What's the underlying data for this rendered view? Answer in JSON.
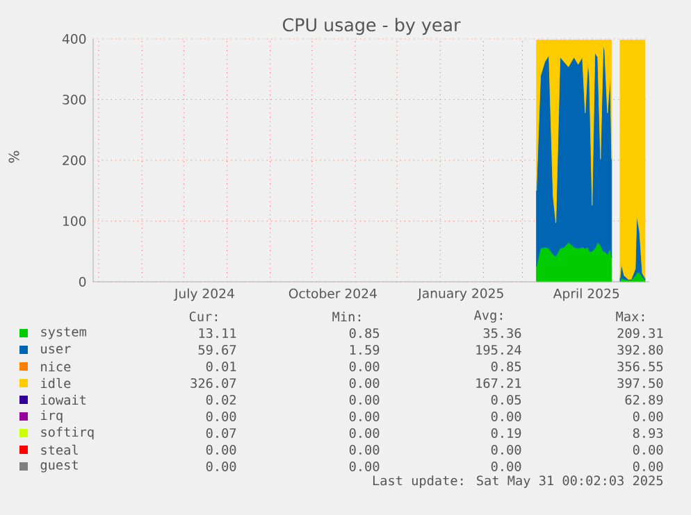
{
  "chart_data": {
    "type": "area",
    "title": "CPU usage - by year",
    "ylabel": "%",
    "stacked": true,
    "grid": true,
    "legend": "bottom",
    "xlim": [
      "2024-04-27",
      "2025-05-31"
    ],
    "xticks": [
      {
        "value": "2024-05-01",
        "label": null
      },
      {
        "value": "2024-06-01",
        "label": null
      },
      {
        "value": "2024-07-01",
        "label": null
      },
      {
        "value": "2024-07-16",
        "label": "July 2024"
      },
      {
        "value": "2024-08-01",
        "label": null
      },
      {
        "value": "2024-09-01",
        "label": null
      },
      {
        "value": "2024-10-01",
        "label": null
      },
      {
        "value": "2024-10-16",
        "label": "October 2024"
      },
      {
        "value": "2024-11-01",
        "label": null
      },
      {
        "value": "2024-12-01",
        "label": null
      },
      {
        "value": "2025-01-01",
        "label": null
      },
      {
        "value": "2025-01-16",
        "label": "January 2025"
      },
      {
        "value": "2025-02-01",
        "label": null
      },
      {
        "value": "2025-03-01",
        "label": null
      },
      {
        "value": "2025-04-01",
        "label": null
      },
      {
        "value": "2025-04-16",
        "label": "April 2025"
      },
      {
        "value": "2025-05-01",
        "label": null
      }
    ],
    "ylim": [
      0,
      400
    ],
    "yticks": [
      0,
      100,
      200,
      300,
      400
    ],
    "x": [
      "2025-03-11",
      "2025-03-14",
      "2025-03-17",
      "2025-03-20",
      "2025-03-23",
      "2025-03-25",
      "2025-03-28",
      "2025-03-31",
      "2025-04-03",
      "2025-04-07",
      "2025-04-10",
      "2025-04-13",
      "2025-04-15",
      "2025-04-17",
      "2025-04-18",
      "2025-04-20",
      "2025-04-22",
      "2025-04-24",
      "2025-04-26",
      "2025-04-28",
      "2025-04-29",
      "2025-05-01",
      "2025-05-03",
      "2025-05-04",
      "2025-05-06",
      "2025-05-10",
      "2025-05-11",
      "2025-05-13",
      "2025-05-16",
      "2025-05-18",
      "2025-05-21",
      "2025-05-22",
      "2025-05-24",
      "2025-05-26",
      "2025-05-28"
    ],
    "series": [
      {
        "name": "system",
        "color": "#00cc00",
        "values": [
          25,
          55,
          57,
          55,
          45,
          42,
          55,
          57,
          65,
          57,
          55,
          57,
          55,
          57,
          50,
          50,
          55,
          65,
          60,
          50,
          50,
          45,
          55,
          40,
          null,
          1,
          6,
          4,
          3,
          3,
          10,
          15,
          15,
          8,
          3
        ]
      },
      {
        "name": "user",
        "color": "#0066b3",
        "values": [
          125,
          284,
          305,
          318,
          96,
          55,
          315,
          305,
          289,
          313,
          303,
          313,
          223,
          305,
          289,
          76,
          322,
          305,
          142,
          339,
          331,
          233,
          284,
          162,
          null,
          5,
          23,
          6,
          1,
          1,
          11,
          94,
          68,
          6,
          3
        ]
      },
      {
        "name": "nice",
        "color": "#ff8000",
        "values": [
          null,
          null,
          null,
          null,
          null,
          null,
          null,
          null,
          null,
          null,
          null,
          null,
          null,
          null,
          null,
          null,
          null,
          null,
          null,
          null,
          null,
          null,
          null,
          null,
          null,
          null,
          null,
          null,
          null,
          null,
          null,
          null,
          null,
          null,
          null
        ]
      },
      {
        "name": "idle",
        "color": "#ffcc00",
        "values": [
          248,
          59,
          36,
          25,
          257,
          301,
          28,
          36,
          44,
          28,
          40,
          28,
          120,
          36,
          59,
          272,
          21,
          28,
          196,
          9,
          17,
          120,
          59,
          196,
          null,
          392,
          369,
          388,
          394,
          394,
          377,
          289,
          315,
          384,
          392
        ]
      },
      {
        "name": "iowait",
        "color": "#330099",
        "values": [
          null,
          null,
          null,
          null,
          null,
          null,
          null,
          null,
          null,
          null,
          null,
          null,
          null,
          null,
          null,
          null,
          null,
          null,
          null,
          null,
          null,
          null,
          null,
          null,
          null,
          null,
          null,
          null,
          null,
          null,
          null,
          null,
          null,
          null,
          null
        ]
      },
      {
        "name": "irq",
        "color": "#990099",
        "values": [
          null,
          null,
          null,
          null,
          null,
          null,
          null,
          null,
          null,
          null,
          null,
          null,
          null,
          null,
          null,
          null,
          null,
          null,
          null,
          null,
          null,
          null,
          null,
          null,
          null,
          null,
          null,
          null,
          null,
          null,
          null,
          null,
          null,
          null,
          null
        ]
      },
      {
        "name": "softirq",
        "color": "#ccff00",
        "values": [
          null,
          null,
          null,
          null,
          null,
          null,
          null,
          null,
          null,
          null,
          null,
          null,
          null,
          null,
          null,
          null,
          null,
          null,
          null,
          null,
          null,
          null,
          null,
          null,
          null,
          null,
          null,
          null,
          null,
          null,
          null,
          null,
          null,
          null,
          null
        ]
      },
      {
        "name": "steal",
        "color": "#ff0000",
        "values": [
          null,
          null,
          null,
          null,
          null,
          null,
          null,
          null,
          null,
          null,
          null,
          null,
          null,
          null,
          null,
          null,
          null,
          null,
          null,
          null,
          null,
          null,
          null,
          null,
          null,
          null,
          null,
          null,
          null,
          null,
          null,
          null,
          null,
          null,
          null
        ]
      },
      {
        "name": "guest",
        "color": "#808080",
        "values": [
          null,
          null,
          null,
          null,
          null,
          null,
          null,
          null,
          null,
          null,
          null,
          null,
          null,
          null,
          null,
          null,
          null,
          null,
          null,
          null,
          null,
          null,
          null,
          null,
          null,
          null,
          null,
          null,
          null,
          null,
          null,
          null,
          null,
          null,
          null
        ]
      }
    ],
    "annotations": [
      "Cur:",
      "Min:",
      "Avg:",
      "Max:",
      "13.11",
      "0.85",
      "35.36",
      "209.31",
      "59.67",
      "1.59",
      "195.24",
      "392.80",
      "0.01",
      "0.00",
      "0.85",
      "356.55",
      "326.07",
      "0.00",
      "167.21",
      "397.50",
      "0.02",
      "0.00",
      "0.05",
      "62.89",
      "0.00",
      "0.00",
      "0.00",
      "0.00",
      "0.07",
      "0.00",
      "0.19",
      "8.93",
      "0.00",
      "0.00",
      "0.00",
      "0.00",
      "0.00",
      "0.00",
      "0.00",
      "0.00",
      "Last update: Sat May 31 00:02:03 2025"
    ]
  }
}
